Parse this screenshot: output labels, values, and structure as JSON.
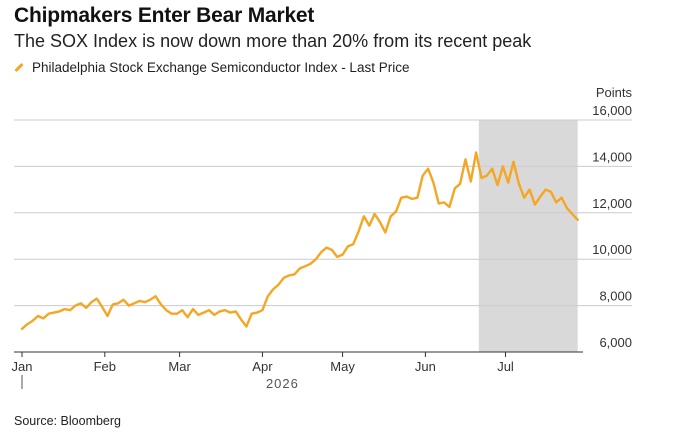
{
  "header": {
    "title": "Chipmakers Enter Bear Market",
    "subtitle": "The SOX Index is now down more than 20% from its recent peak"
  },
  "legend": {
    "label": "Philadelphia Stock Exchange Semiconductor Index - Last Price"
  },
  "footer": {
    "source": "Source: Bloomberg"
  },
  "colors": {
    "series": "#f5a623",
    "shade": "#d9d9d9",
    "grid": "#cccccc"
  },
  "chart_data": {
    "type": "line",
    "title": "Chipmakers Enter Bear Market",
    "subtitle": "The SOX Index is now down more than 20% from its recent peak",
    "ylabel": "Points",
    "ylim": [
      6000,
      16000
    ],
    "yticks": [
      "6,000",
      "8,000",
      "10,000",
      "12,000",
      "14,000",
      "16,000"
    ],
    "ytick_values": [
      6000,
      8000,
      10000,
      12000,
      14000,
      16000
    ],
    "y_axis_position": "right",
    "x_labels": [
      "Jan",
      "Feb",
      "Mar",
      "Apr",
      "May",
      "Jun",
      "Jul"
    ],
    "x_label_dates": [
      "2026-01-01",
      "2026-02-01",
      "2026-03-01",
      "2026-04-01",
      "2026-05-01",
      "2026-06-01",
      "2026-07-01"
    ],
    "x_year_label": "2026",
    "xlim": [
      "2026-01-01",
      "2026-07-30"
    ],
    "grid": true,
    "legend_position": "top-left",
    "shaded_region": {
      "start": "2026-06-21",
      "end": "2026-07-28"
    },
    "series": [
      {
        "name": "Philadelphia Stock Exchange Semiconductor Index - Last Price",
        "x": [
          "2026-01-01",
          "2026-01-03",
          "2026-01-05",
          "2026-01-07",
          "2026-01-09",
          "2026-01-11",
          "2026-01-13",
          "2026-01-15",
          "2026-01-17",
          "2026-01-19",
          "2026-01-21",
          "2026-01-23",
          "2026-01-25",
          "2026-01-27",
          "2026-01-29",
          "2026-01-31",
          "2026-02-02",
          "2026-02-04",
          "2026-02-06",
          "2026-02-08",
          "2026-02-10",
          "2026-02-12",
          "2026-02-14",
          "2026-02-16",
          "2026-02-18",
          "2026-02-20",
          "2026-02-22",
          "2026-02-24",
          "2026-02-26",
          "2026-02-28",
          "2026-03-02",
          "2026-03-04",
          "2026-03-06",
          "2026-03-08",
          "2026-03-10",
          "2026-03-12",
          "2026-03-14",
          "2026-03-16",
          "2026-03-18",
          "2026-03-20",
          "2026-03-22",
          "2026-03-24",
          "2026-03-26",
          "2026-03-28",
          "2026-03-30",
          "2026-04-01",
          "2026-04-03",
          "2026-04-05",
          "2026-04-07",
          "2026-04-09",
          "2026-04-11",
          "2026-04-13",
          "2026-04-15",
          "2026-04-17",
          "2026-04-19",
          "2026-04-21",
          "2026-04-23",
          "2026-04-25",
          "2026-04-27",
          "2026-04-29",
          "2026-05-01",
          "2026-05-03",
          "2026-05-05",
          "2026-05-07",
          "2026-05-09",
          "2026-05-11",
          "2026-05-13",
          "2026-05-15",
          "2026-05-17",
          "2026-05-19",
          "2026-05-21",
          "2026-05-23",
          "2026-05-25",
          "2026-05-27",
          "2026-05-29",
          "2026-05-31",
          "2026-06-02",
          "2026-06-04",
          "2026-06-06",
          "2026-06-08",
          "2026-06-10",
          "2026-06-12",
          "2026-06-14",
          "2026-06-16",
          "2026-06-18",
          "2026-06-20",
          "2026-06-22",
          "2026-06-24",
          "2026-06-26",
          "2026-06-28",
          "2026-06-30",
          "2026-07-02",
          "2026-07-04",
          "2026-07-06",
          "2026-07-08",
          "2026-07-10",
          "2026-07-12",
          "2026-07-14",
          "2026-07-16",
          "2026-07-18",
          "2026-07-20",
          "2026-07-22",
          "2026-07-24",
          "2026-07-26",
          "2026-07-28"
        ],
        "values": [
          7000,
          7200,
          7350,
          7550,
          7450,
          7650,
          7700,
          7750,
          7850,
          7800,
          8000,
          8100,
          7900,
          8150,
          8300,
          7950,
          7550,
          8050,
          8100,
          8250,
          8000,
          8100,
          8200,
          8150,
          8250,
          8400,
          8050,
          7800,
          7650,
          7650,
          7800,
          7500,
          7850,
          7600,
          7700,
          7800,
          7600,
          7750,
          7800,
          7700,
          7750,
          7400,
          7100,
          7650,
          7700,
          7800,
          8400,
          8700,
          8900,
          9200,
          9300,
          9350,
          9600,
          9700,
          9800,
          10000,
          10300,
          10500,
          10400,
          10100,
          10200,
          10550,
          10650,
          11200,
          11850,
          11450,
          11950,
          11600,
          11150,
          11850,
          12050,
          12650,
          12700,
          12600,
          12650,
          13600,
          13900,
          13300,
          12400,
          12450,
          12250,
          13050,
          13250,
          14300,
          13350,
          14600,
          13500,
          13600,
          13900,
          13200,
          14000,
          13300,
          14200,
          13250,
          12650,
          13000,
          12350,
          12700,
          13000,
          12900,
          12450,
          12650,
          12200,
          11950,
          11700
        ]
      }
    ]
  }
}
